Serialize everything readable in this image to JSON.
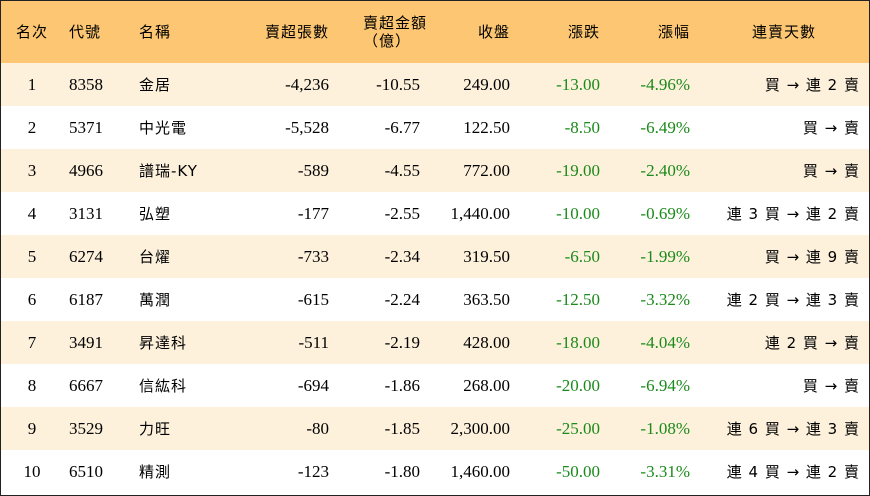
{
  "headers": {
    "rank": "名次",
    "code": "代號",
    "name": "名稱",
    "net_sell_lots": "賣超張數",
    "net_sell_amount_line1": "賣超金額",
    "net_sell_amount_line2": "（億）",
    "close": "收盤",
    "change": "漲跌",
    "change_pct": "漲幅",
    "streak": "連賣天數"
  },
  "colors": {
    "header_bg": "#fcc672",
    "odd_row_bg": "#fdf1dc",
    "negative_text": "#1a8a1a"
  },
  "rows": [
    {
      "rank": "1",
      "code": "8358",
      "name": "金居",
      "lots": "-4,236",
      "amount": "-10.55",
      "close": "249.00",
      "change": "-13.00",
      "pct": "-4.96%",
      "streak": "買 → 連 2 賣"
    },
    {
      "rank": "2",
      "code": "5371",
      "name": "中光電",
      "lots": "-5,528",
      "amount": "-6.77",
      "close": "122.50",
      "change": "-8.50",
      "pct": "-6.49%",
      "streak": "買 → 賣"
    },
    {
      "rank": "3",
      "code": "4966",
      "name": "譜瑞-KY",
      "lots": "-589",
      "amount": "-4.55",
      "close": "772.00",
      "change": "-19.00",
      "pct": "-2.40%",
      "streak": "買 → 賣"
    },
    {
      "rank": "4",
      "code": "3131",
      "name": "弘塑",
      "lots": "-177",
      "amount": "-2.55",
      "close": "1,440.00",
      "change": "-10.00",
      "pct": "-0.69%",
      "streak": "連 3 買 → 連 2 賣"
    },
    {
      "rank": "5",
      "code": "6274",
      "name": "台燿",
      "lots": "-733",
      "amount": "-2.34",
      "close": "319.50",
      "change": "-6.50",
      "pct": "-1.99%",
      "streak": "買 → 連 9 賣"
    },
    {
      "rank": "6",
      "code": "6187",
      "name": "萬潤",
      "lots": "-615",
      "amount": "-2.24",
      "close": "363.50",
      "change": "-12.50",
      "pct": "-3.32%",
      "streak": "連 2 買 → 連 3 賣"
    },
    {
      "rank": "7",
      "code": "3491",
      "name": "昇達科",
      "lots": "-511",
      "amount": "-2.19",
      "close": "428.00",
      "change": "-18.00",
      "pct": "-4.04%",
      "streak": "連 2 買 → 賣"
    },
    {
      "rank": "8",
      "code": "6667",
      "name": "信紘科",
      "lots": "-694",
      "amount": "-1.86",
      "close": "268.00",
      "change": "-20.00",
      "pct": "-6.94%",
      "streak": "買 → 賣"
    },
    {
      "rank": "9",
      "code": "3529",
      "name": "力旺",
      "lots": "-80",
      "amount": "-1.85",
      "close": "2,300.00",
      "change": "-25.00",
      "pct": "-1.08%",
      "streak": "連 6 買 → 連 3 賣"
    },
    {
      "rank": "10",
      "code": "6510",
      "name": "精測",
      "lots": "-123",
      "amount": "-1.80",
      "close": "1,460.00",
      "change": "-50.00",
      "pct": "-3.31%",
      "streak": "連 4 買 → 連 2 賣"
    }
  ]
}
